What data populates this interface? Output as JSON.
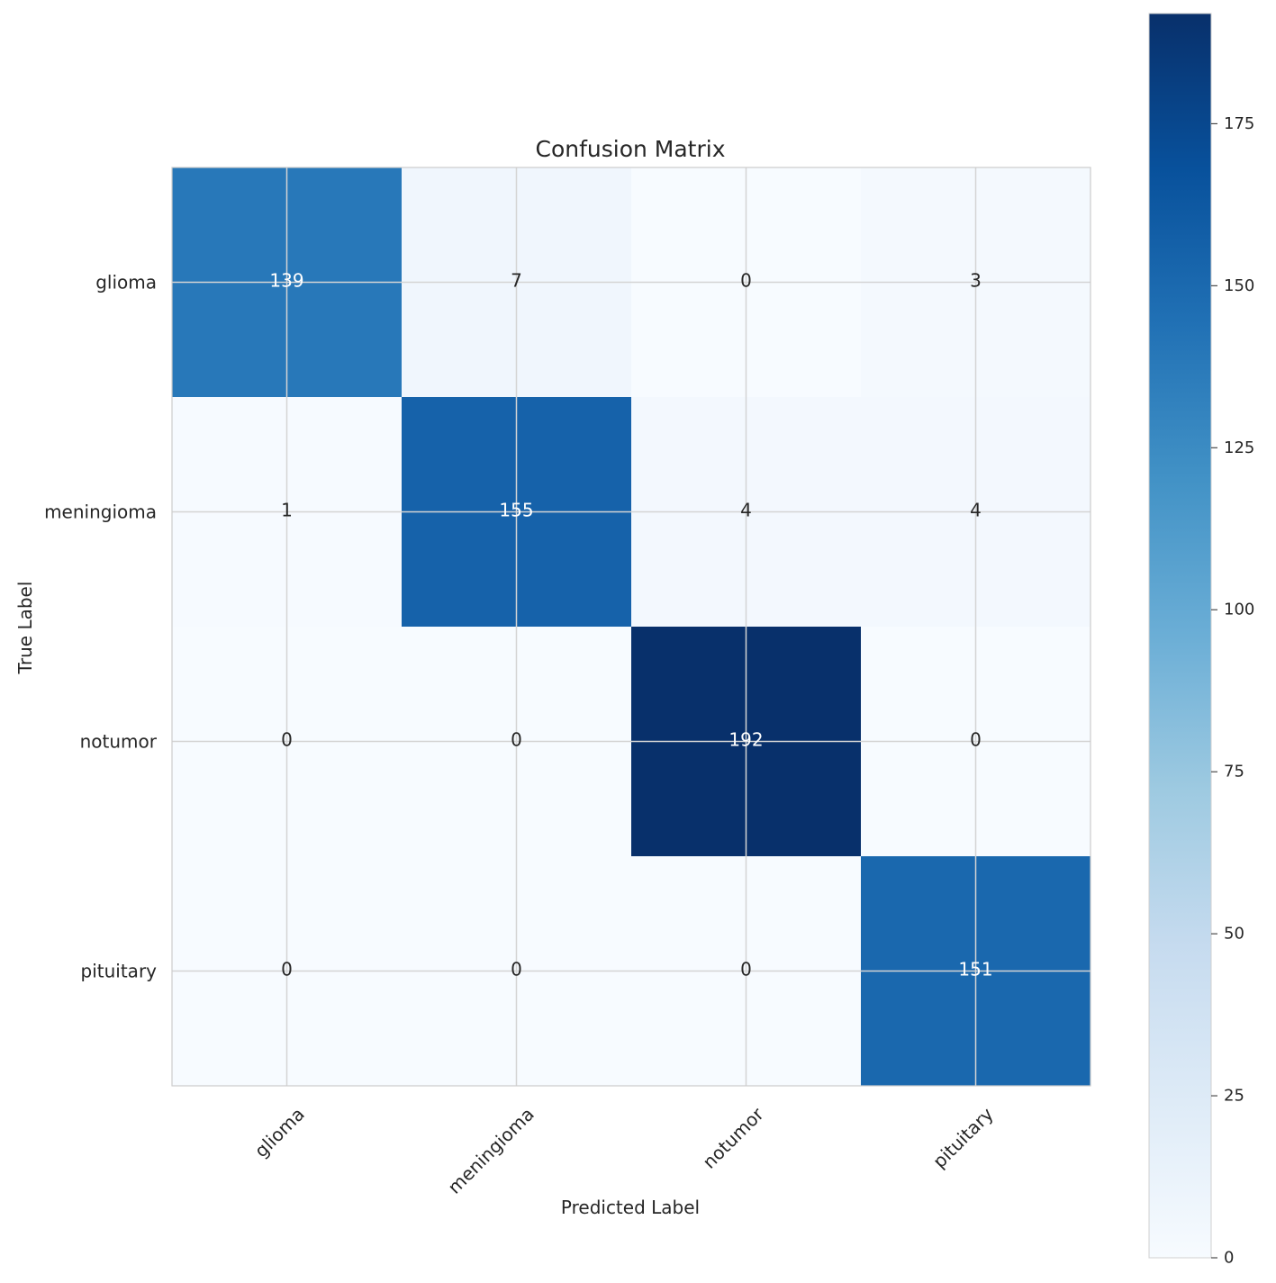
{
  "chart_data": {
    "type": "heatmap",
    "title": "Confusion Matrix",
    "xlabel": "Predicted Label",
    "ylabel": "True Label",
    "x_categories": [
      "glioma",
      "meningioma",
      "notumor",
      "pituitary"
    ],
    "y_categories": [
      "glioma",
      "meningioma",
      "notumor",
      "pituitary"
    ],
    "values": [
      [
        139,
        7,
        0,
        3
      ],
      [
        1,
        155,
        4,
        4
      ],
      [
        0,
        0,
        192,
        0
      ],
      [
        0,
        0,
        0,
        151
      ]
    ],
    "colormap": "Blues",
    "color_range": [
      0,
      192
    ],
    "colorbar_ticks": [
      0,
      25,
      50,
      75,
      100,
      125,
      150,
      175
    ],
    "grid": true,
    "colorbar": "right"
  }
}
